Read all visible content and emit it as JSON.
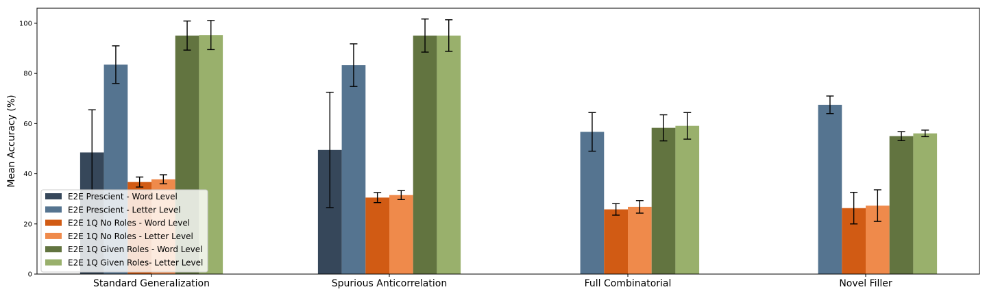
{
  "chart_data": {
    "type": "bar",
    "title": "",
    "xlabel": "",
    "ylabel": "Mean Accuracy (%)",
    "ylim": [
      0,
      106
    ],
    "yticks": [
      0,
      20,
      40,
      60,
      80,
      100
    ],
    "grid": false,
    "legend_position": "bottom-left",
    "categories": [
      "Standard Generalization",
      "Spurious Anticorrelation",
      "Full Combinatorial",
      "Novel Filler"
    ],
    "series": [
      {
        "name": "E2E Prescient - Word Level",
        "color": "#36475a",
        "values": [
          48.5,
          49.5,
          0,
          0
        ],
        "errors": [
          17,
          23,
          0,
          0
        ]
      },
      {
        "name": "E2E Prescient - Letter Level",
        "color": "#557490",
        "values": [
          83.5,
          83.3,
          56.7,
          67.5
        ],
        "errors": [
          7.5,
          8.5,
          7.7,
          3.5
        ]
      },
      {
        "name": "E2E 1Q No Roles - Word Level",
        "color": "#d15b14",
        "values": [
          36.7,
          30.5,
          25.8,
          26.3
        ],
        "errors": [
          2,
          2,
          2.3,
          6.3
        ]
      },
      {
        "name": "E2E 1Q No Roles - Letter Level",
        "color": "#ef8a4b",
        "values": [
          37.8,
          31.5,
          26.8,
          27.3
        ],
        "errors": [
          1.8,
          1.8,
          2.5,
          6.3
        ]
      },
      {
        "name": "E2E 1Q Given Roles - Word Level",
        "color": "#627440",
        "values": [
          95.1,
          95.1,
          58.3,
          55
        ],
        "errors": [
          5.8,
          6.6,
          5.2,
          1.8
        ]
      },
      {
        "name": "E2E 1Q Given Roles- Letter Level",
        "color": "#99b06c",
        "values": [
          95.3,
          95.1,
          59.1,
          56.1
        ],
        "errors": [
          5.8,
          6.3,
          5.3,
          1.3
        ]
      }
    ]
  }
}
